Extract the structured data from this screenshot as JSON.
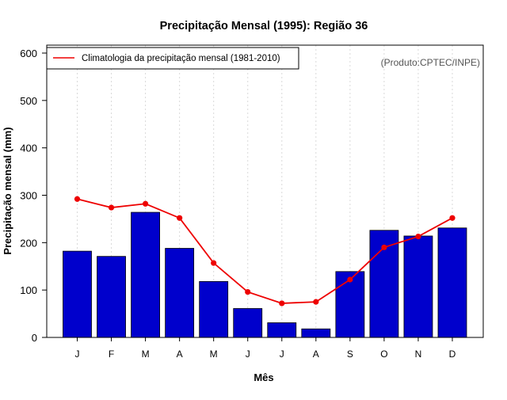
{
  "chart_data": {
    "type": "bar",
    "title": "Precipitação Mensal (1995): Região 36",
    "xlabel": "Mês",
    "ylabel": "Precipitação mensal (mm)",
    "credit": "(Produto:CPTEC/INPE)",
    "ylim": [
      0,
      600
    ],
    "yticks": [
      0,
      100,
      200,
      300,
      400,
      500,
      600
    ],
    "categories": [
      "J",
      "F",
      "M",
      "A",
      "M",
      "J",
      "J",
      "A",
      "S",
      "O",
      "N",
      "D"
    ],
    "series": [
      {
        "name": "1995",
        "type": "bar",
        "color": "#0000CC",
        "values": [
          182,
          171,
          264,
          188,
          118,
          61,
          31,
          18,
          139,
          226,
          214,
          231
        ]
      },
      {
        "name": "Climatologia da precipitação mensal (1981-2010)",
        "type": "line",
        "color": "#EE0000",
        "values": [
          292,
          274,
          282,
          252,
          157,
          96,
          72,
          75,
          122,
          190,
          213,
          252
        ]
      }
    ],
    "legend": {
      "position": "top-left",
      "entries": [
        "Climatologia da precipitação mensal (1981-2010)"
      ]
    },
    "grid": {
      "vertical": true,
      "horizontal": false
    }
  }
}
